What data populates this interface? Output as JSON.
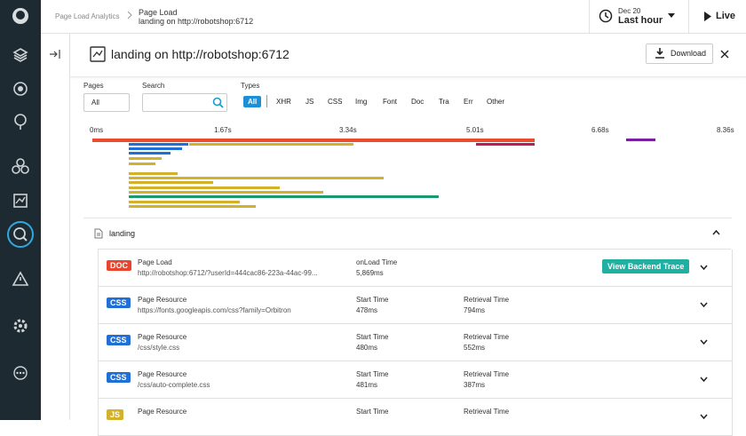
{
  "breadcrumb": {
    "root": "Page Load Analytics",
    "section": "Page Load",
    "page": "landing on http://robotshop:6712"
  },
  "time_picker": {
    "date": "Dec 20",
    "range": "Last hour"
  },
  "live": "Live",
  "header": {
    "title": "landing on http://robotshop:6712",
    "download": "Download"
  },
  "filters": {
    "pages_label": "Pages",
    "pages_value": "All",
    "search_label": "Search",
    "types_label": "Types",
    "types": [
      "All",
      "XHR",
      "JS",
      "CSS",
      "Img",
      "Font",
      "Doc",
      "Tra",
      "Err",
      "Other"
    ]
  },
  "timeline": {
    "ticks": [
      "0ms",
      "1.67s",
      "3.34s",
      "5.01s",
      "6.68s",
      "8.36s"
    ]
  },
  "section": {
    "title": "landing"
  },
  "rows": [
    {
      "badge": "DOC",
      "badge_color": "#e8452c",
      "title": "Page Load",
      "subtitle": "http://robotshop:6712/?userId=444cac86-223a-44ac-99...",
      "fields": [
        {
          "label": "onLoad Time",
          "value": "5,869ms"
        }
      ],
      "button": "View Backend Trace"
    },
    {
      "badge": "CSS",
      "badge_color": "#1f6fd6",
      "title": "Page Resource",
      "subtitle": "https://fonts.googleapis.com/css?family=Orbitron",
      "fields": [
        {
          "label": "Start Time",
          "value": "478ms"
        },
        {
          "label": "Retrieval Time",
          "value": "794ms"
        }
      ]
    },
    {
      "badge": "CSS",
      "badge_color": "#1f6fd6",
      "title": "Page Resource",
      "subtitle": "/css/style.css",
      "fields": [
        {
          "label": "Start Time",
          "value": "480ms"
        },
        {
          "label": "Retrieval Time",
          "value": "552ms"
        }
      ]
    },
    {
      "badge": "CSS",
      "badge_color": "#1f6fd6",
      "title": "Page Resource",
      "subtitle": "/css/auto-complete.css",
      "fields": [
        {
          "label": "Start Time",
          "value": "481ms"
        },
        {
          "label": "Retrieval Time",
          "value": "387ms"
        }
      ]
    },
    {
      "badge": "JS",
      "badge_color": "#d4b12a",
      "title": "Page Resource",
      "fields": [
        {
          "label": "Start Time"
        },
        {
          "label": "Retrieval Time"
        }
      ]
    }
  ]
}
